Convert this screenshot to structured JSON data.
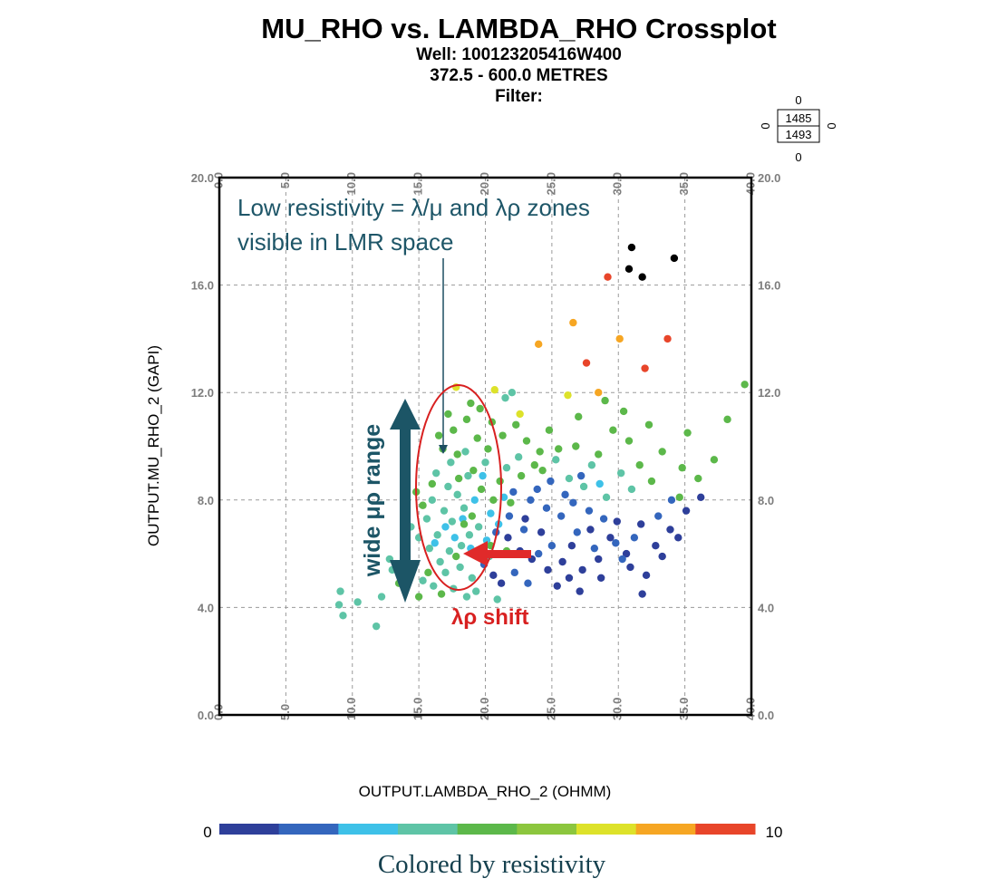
{
  "header": {
    "title": "MU_RHO vs. LAMBDA_RHO Crossplot",
    "well": "Well: 100123205416W400",
    "depth_range": "372.5 - 600.0 METRES",
    "filter": "Filter:"
  },
  "legend_box": {
    "top": "0",
    "left": "0",
    "right": "0",
    "bottom": "0",
    "upper_value": "1485",
    "lower_value": "1493"
  },
  "annotations": {
    "low_resistivity": [
      "Low resistivity = λ/μ and λρ zones",
      "visible in LMR space"
    ],
    "wide_range": "wide μρ range",
    "shift": "λρ shift"
  },
  "colorbar": {
    "min_label": "0",
    "max_label": "10",
    "colors": [
      "#2e3f9a",
      "#3466bd",
      "#3ec1e8",
      "#5ec4a6",
      "#5cb84a",
      "#8cc63e",
      "#dde22a",
      "#f6a623",
      "#e8452a"
    ]
  },
  "footer": {
    "caption": "Colored by resistivity"
  },
  "chart_data": {
    "type": "scatter",
    "title": "MU_RHO vs. LAMBDA_RHO Crossplot",
    "xlabel": "OUTPUT.LAMBDA_RHO_2 (OHMM)",
    "ylabel": "OUTPUT.MU_RHO_2 (GAPI)",
    "xlim": [
      0,
      40
    ],
    "ylim": [
      0,
      20
    ],
    "x_ticks": [
      "0.0",
      "5.0",
      "10.0",
      "15.0",
      "20.0",
      "25.0",
      "30.0",
      "35.0",
      "40.0"
    ],
    "y_ticks": [
      "0.0",
      "4.0",
      "8.0",
      "12.0",
      "16.0",
      "20.0"
    ],
    "grid": true,
    "color_scale": [
      0,
      10
    ],
    "points": [
      {
        "x": 31.0,
        "y": 17.4,
        "c": "black"
      },
      {
        "x": 34.2,
        "y": 17.0,
        "c": "black"
      },
      {
        "x": 30.8,
        "y": 16.6,
        "c": "black"
      },
      {
        "x": 31.8,
        "y": 16.3,
        "c": "black"
      },
      {
        "x": 29.2,
        "y": 16.3,
        "c": 9.5
      },
      {
        "x": 33.7,
        "y": 14.0,
        "c": 9.5
      },
      {
        "x": 32.0,
        "y": 12.9,
        "c": 9.5
      },
      {
        "x": 27.6,
        "y": 13.1,
        "c": 9.3
      },
      {
        "x": 26.6,
        "y": 14.6,
        "c": 8.2
      },
      {
        "x": 24.0,
        "y": 13.8,
        "c": 8.2
      },
      {
        "x": 30.1,
        "y": 14.0,
        "c": 8.2
      },
      {
        "x": 28.5,
        "y": 12.0,
        "c": 8.2
      },
      {
        "x": 17.8,
        "y": 12.2,
        "c": 7.0
      },
      {
        "x": 22.6,
        "y": 11.2,
        "c": 7.0
      },
      {
        "x": 20.7,
        "y": 12.1,
        "c": 7.0
      },
      {
        "x": 26.2,
        "y": 11.9,
        "c": 7.0
      },
      {
        "x": 39.5,
        "y": 12.3,
        "c": 5.5
      },
      {
        "x": 38.2,
        "y": 11.0,
        "c": 5.5
      },
      {
        "x": 37.2,
        "y": 9.5,
        "c": 5.5
      },
      {
        "x": 34.8,
        "y": 9.2,
        "c": 5.5
      },
      {
        "x": 30.4,
        "y": 11.3,
        "c": 5.0
      },
      {
        "x": 32.3,
        "y": 10.8,
        "c": 5.0
      },
      {
        "x": 35.2,
        "y": 10.5,
        "c": 5.0
      },
      {
        "x": 36.0,
        "y": 8.8,
        "c": 5.0
      },
      {
        "x": 34.6,
        "y": 8.1,
        "c": 5.0
      },
      {
        "x": 29.0,
        "y": 11.7,
        "c": 5.0
      },
      {
        "x": 27.0,
        "y": 11.1,
        "c": 5.0
      },
      {
        "x": 24.8,
        "y": 10.6,
        "c": 5.0
      },
      {
        "x": 30.8,
        "y": 10.2,
        "c": 5.0
      },
      {
        "x": 31.6,
        "y": 9.3,
        "c": 5.0
      },
      {
        "x": 28.5,
        "y": 9.7,
        "c": 5.0
      },
      {
        "x": 26.8,
        "y": 10.0,
        "c": 5.0
      },
      {
        "x": 29.6,
        "y": 10.6,
        "c": 5.0
      },
      {
        "x": 33.3,
        "y": 9.8,
        "c": 5.0
      },
      {
        "x": 32.5,
        "y": 8.7,
        "c": 5.0
      },
      {
        "x": 21.5,
        "y": 11.8,
        "c": 3.8
      },
      {
        "x": 22.0,
        "y": 12.0,
        "c": 3.8
      },
      {
        "x": 30.2,
        "y": 9.0,
        "c": 3.8
      },
      {
        "x": 28.0,
        "y": 9.3,
        "c": 3.8
      },
      {
        "x": 27.4,
        "y": 8.5,
        "c": 3.8
      },
      {
        "x": 29.1,
        "y": 8.1,
        "c": 3.8
      },
      {
        "x": 25.3,
        "y": 9.5,
        "c": 3.8
      },
      {
        "x": 26.3,
        "y": 8.8,
        "c": 3.8
      },
      {
        "x": 31.0,
        "y": 8.4,
        "c": 3.8
      },
      {
        "x": 36.2,
        "y": 8.1,
        "c": 0.5
      },
      {
        "x": 35.1,
        "y": 7.6,
        "c": 0.5
      },
      {
        "x": 33.9,
        "y": 6.9,
        "c": 0.5
      },
      {
        "x": 34.5,
        "y": 6.6,
        "c": 0.5
      },
      {
        "x": 32.8,
        "y": 6.3,
        "c": 0.5
      },
      {
        "x": 31.7,
        "y": 7.1,
        "c": 0.5
      },
      {
        "x": 30.6,
        "y": 6.0,
        "c": 0.5
      },
      {
        "x": 29.4,
        "y": 6.6,
        "c": 0.5
      },
      {
        "x": 28.5,
        "y": 5.8,
        "c": 0.5
      },
      {
        "x": 27.3,
        "y": 5.4,
        "c": 0.5
      },
      {
        "x": 26.3,
        "y": 5.1,
        "c": 0.5
      },
      {
        "x": 25.4,
        "y": 4.8,
        "c": 0.5
      },
      {
        "x": 24.7,
        "y": 5.4,
        "c": 0.5
      },
      {
        "x": 23.5,
        "y": 5.8,
        "c": 0.5
      },
      {
        "x": 22.6,
        "y": 6.1,
        "c": 0.5
      },
      {
        "x": 21.7,
        "y": 6.6,
        "c": 0.5
      },
      {
        "x": 20.6,
        "y": 5.2,
        "c": 0.5
      },
      {
        "x": 21.2,
        "y": 4.9,
        "c": 0.5
      },
      {
        "x": 26.5,
        "y": 6.3,
        "c": 0.5
      },
      {
        "x": 27.9,
        "y": 6.9,
        "c": 0.5
      },
      {
        "x": 29.9,
        "y": 7.2,
        "c": 0.5
      },
      {
        "x": 28.7,
        "y": 5.1,
        "c": 0.5
      },
      {
        "x": 25.8,
        "y": 5.7,
        "c": 0.5
      },
      {
        "x": 24.2,
        "y": 6.8,
        "c": 0.5
      },
      {
        "x": 23.0,
        "y": 7.3,
        "c": 0.5
      },
      {
        "x": 30.9,
        "y": 5.5,
        "c": 0.5
      },
      {
        "x": 32.1,
        "y": 5.2,
        "c": 0.5
      },
      {
        "x": 33.3,
        "y": 5.9,
        "c": 0.5
      },
      {
        "x": 27.1,
        "y": 4.6,
        "c": 0.5
      },
      {
        "x": 31.8,
        "y": 4.5,
        "c": 0.5
      },
      {
        "x": 22.1,
        "y": 8.3,
        "c": 1.5
      },
      {
        "x": 23.4,
        "y": 8.0,
        "c": 1.5
      },
      {
        "x": 24.6,
        "y": 7.7,
        "c": 1.5
      },
      {
        "x": 25.7,
        "y": 7.4,
        "c": 1.5
      },
      {
        "x": 26.6,
        "y": 7.9,
        "c": 1.5
      },
      {
        "x": 27.8,
        "y": 7.6,
        "c": 1.5
      },
      {
        "x": 28.9,
        "y": 7.3,
        "c": 1.5
      },
      {
        "x": 29.8,
        "y": 6.4,
        "c": 1.5
      },
      {
        "x": 25.0,
        "y": 6.3,
        "c": 1.5
      },
      {
        "x": 24.0,
        "y": 6.0,
        "c": 1.5
      },
      {
        "x": 22.9,
        "y": 6.9,
        "c": 1.5
      },
      {
        "x": 21.8,
        "y": 7.4,
        "c": 1.5
      },
      {
        "x": 20.8,
        "y": 6.8,
        "c": 1.5
      },
      {
        "x": 19.9,
        "y": 5.6,
        "c": 1.5
      },
      {
        "x": 26.9,
        "y": 6.8,
        "c": 1.5
      },
      {
        "x": 28.2,
        "y": 6.2,
        "c": 1.5
      },
      {
        "x": 30.3,
        "y": 5.8,
        "c": 1.5
      },
      {
        "x": 31.2,
        "y": 6.6,
        "c": 1.5
      },
      {
        "x": 23.9,
        "y": 8.4,
        "c": 1.5
      },
      {
        "x": 24.9,
        "y": 8.7,
        "c": 1.5
      },
      {
        "x": 26.0,
        "y": 8.2,
        "c": 1.5
      },
      {
        "x": 27.2,
        "y": 8.9,
        "c": 1.5
      },
      {
        "x": 23.2,
        "y": 4.9,
        "c": 1.5
      },
      {
        "x": 22.2,
        "y": 5.3,
        "c": 1.5
      },
      {
        "x": 34.0,
        "y": 8.0,
        "c": 1.5
      },
      {
        "x": 33.0,
        "y": 7.4,
        "c": 1.5
      },
      {
        "x": 19.2,
        "y": 8.0,
        "c": 2.5
      },
      {
        "x": 20.4,
        "y": 7.5,
        "c": 2.5
      },
      {
        "x": 18.3,
        "y": 7.3,
        "c": 2.5
      },
      {
        "x": 21.4,
        "y": 8.1,
        "c": 2.5
      },
      {
        "x": 17.7,
        "y": 6.6,
        "c": 2.5
      },
      {
        "x": 19.8,
        "y": 8.9,
        "c": 2.5
      },
      {
        "x": 21.0,
        "y": 7.1,
        "c": 2.5
      },
      {
        "x": 18.9,
        "y": 6.2,
        "c": 2.5
      },
      {
        "x": 20.1,
        "y": 6.5,
        "c": 2.5
      },
      {
        "x": 28.6,
        "y": 8.6,
        "c": 2.5
      },
      {
        "x": 17.0,
        "y": 7.0,
        "c": 2.5
      },
      {
        "x": 16.2,
        "y": 6.4,
        "c": 2.5
      },
      {
        "x": 9.0,
        "y": 4.1,
        "c": 3.5
      },
      {
        "x": 9.3,
        "y": 3.7,
        "c": 3.5
      },
      {
        "x": 10.4,
        "y": 4.2,
        "c": 3.5
      },
      {
        "x": 11.8,
        "y": 3.3,
        "c": 3.5
      },
      {
        "x": 12.2,
        "y": 4.4,
        "c": 3.5
      },
      {
        "x": 9.1,
        "y": 4.6,
        "c": 3.5
      },
      {
        "x": 13.0,
        "y": 5.4,
        "c": 3.5
      },
      {
        "x": 12.8,
        "y": 5.8,
        "c": 3.5
      },
      {
        "x": 14.1,
        "y": 5.9,
        "c": 3.5
      },
      {
        "x": 14.6,
        "y": 5.6,
        "c": 3.5
      },
      {
        "x": 15.3,
        "y": 5.0,
        "c": 3.5
      },
      {
        "x": 15.8,
        "y": 6.2,
        "c": 3.5
      },
      {
        "x": 16.4,
        "y": 6.7,
        "c": 3.5
      },
      {
        "x": 16.9,
        "y": 7.6,
        "c": 3.5
      },
      {
        "x": 17.5,
        "y": 7.2,
        "c": 3.5
      },
      {
        "x": 17.9,
        "y": 8.2,
        "c": 3.5
      },
      {
        "x": 18.4,
        "y": 7.7,
        "c": 3.5
      },
      {
        "x": 18.8,
        "y": 6.7,
        "c": 3.5
      },
      {
        "x": 19.5,
        "y": 7.0,
        "c": 3.5
      },
      {
        "x": 17.3,
        "y": 6.1,
        "c": 3.5
      },
      {
        "x": 16.6,
        "y": 5.7,
        "c": 3.5
      },
      {
        "x": 18.1,
        "y": 5.5,
        "c": 3.5
      },
      {
        "x": 19.0,
        "y": 5.1,
        "c": 3.5
      },
      {
        "x": 17.6,
        "y": 4.7,
        "c": 3.5
      },
      {
        "x": 18.6,
        "y": 4.4,
        "c": 3.5
      },
      {
        "x": 16.1,
        "y": 4.8,
        "c": 3.5
      },
      {
        "x": 15.6,
        "y": 7.3,
        "c": 3.5
      },
      {
        "x": 16.0,
        "y": 8.0,
        "c": 3.5
      },
      {
        "x": 17.2,
        "y": 8.5,
        "c": 3.5
      },
      {
        "x": 18.7,
        "y": 8.9,
        "c": 3.5
      },
      {
        "x": 19.6,
        "y": 6.0,
        "c": 3.5
      },
      {
        "x": 20.3,
        "y": 5.9,
        "c": 3.5
      },
      {
        "x": 17.0,
        "y": 5.3,
        "c": 3.5
      },
      {
        "x": 15.0,
        "y": 6.6,
        "c": 3.5
      },
      {
        "x": 14.4,
        "y": 7.0,
        "c": 3.5
      },
      {
        "x": 18.2,
        "y": 6.3,
        "c": 3.5
      },
      {
        "x": 19.3,
        "y": 4.6,
        "c": 3.5
      },
      {
        "x": 20.9,
        "y": 4.3,
        "c": 3.5
      },
      {
        "x": 17.4,
        "y": 9.4,
        "c": 3.5
      },
      {
        "x": 18.5,
        "y": 9.8,
        "c": 3.5
      },
      {
        "x": 16.3,
        "y": 9.0,
        "c": 3.5
      },
      {
        "x": 20.0,
        "y": 9.4,
        "c": 3.5
      },
      {
        "x": 21.6,
        "y": 9.2,
        "c": 3.5
      },
      {
        "x": 22.5,
        "y": 9.6,
        "c": 3.5
      },
      {
        "x": 17.6,
        "y": 10.6,
        "c": 4.6
      },
      {
        "x": 18.6,
        "y": 11.0,
        "c": 4.6
      },
      {
        "x": 19.4,
        "y": 10.3,
        "c": 4.6
      },
      {
        "x": 20.5,
        "y": 10.9,
        "c": 4.6
      },
      {
        "x": 16.8,
        "y": 9.9,
        "c": 4.6
      },
      {
        "x": 17.9,
        "y": 9.7,
        "c": 4.6
      },
      {
        "x": 19.1,
        "y": 9.1,
        "c": 4.6
      },
      {
        "x": 20.2,
        "y": 9.9,
        "c": 4.6
      },
      {
        "x": 21.3,
        "y": 10.4,
        "c": 4.6
      },
      {
        "x": 22.3,
        "y": 10.8,
        "c": 4.6
      },
      {
        "x": 23.1,
        "y": 10.2,
        "c": 4.6
      },
      {
        "x": 24.1,
        "y": 9.8,
        "c": 4.6
      },
      {
        "x": 16.0,
        "y": 8.6,
        "c": 4.6
      },
      {
        "x": 15.3,
        "y": 7.8,
        "c": 4.6
      },
      {
        "x": 14.8,
        "y": 8.3,
        "c": 4.6
      },
      {
        "x": 18.0,
        "y": 8.8,
        "c": 4.6
      },
      {
        "x": 19.7,
        "y": 8.4,
        "c": 4.6
      },
      {
        "x": 21.1,
        "y": 8.7,
        "c": 4.6
      },
      {
        "x": 22.7,
        "y": 8.9,
        "c": 4.6
      },
      {
        "x": 23.7,
        "y": 9.3,
        "c": 4.6
      },
      {
        "x": 15.7,
        "y": 5.3,
        "c": 4.6
      },
      {
        "x": 14.3,
        "y": 5.2,
        "c": 4.6
      },
      {
        "x": 13.5,
        "y": 4.9,
        "c": 4.6
      },
      {
        "x": 16.7,
        "y": 4.5,
        "c": 4.6
      },
      {
        "x": 17.8,
        "y": 5.9,
        "c": 4.6
      },
      {
        "x": 19.0,
        "y": 7.4,
        "c": 4.6
      },
      {
        "x": 20.6,
        "y": 8.0,
        "c": 4.6
      },
      {
        "x": 21.9,
        "y": 7.9,
        "c": 4.6
      },
      {
        "x": 18.9,
        "y": 11.6,
        "c": 4.6
      },
      {
        "x": 19.6,
        "y": 11.4,
        "c": 4.6
      },
      {
        "x": 17.2,
        "y": 11.2,
        "c": 4.6
      },
      {
        "x": 16.5,
        "y": 10.4,
        "c": 4.6
      },
      {
        "x": 24.3,
        "y": 9.1,
        "c": 4.6
      },
      {
        "x": 25.5,
        "y": 9.9,
        "c": 4.6
      },
      {
        "x": 20.4,
        "y": 6.3,
        "c": 4.6
      },
      {
        "x": 21.6,
        "y": 6.1,
        "c": 4.6
      },
      {
        "x": 18.4,
        "y": 7.1,
        "c": 4.6
      },
      {
        "x": 15.0,
        "y": 4.4,
        "c": 4.6
      }
    ]
  }
}
